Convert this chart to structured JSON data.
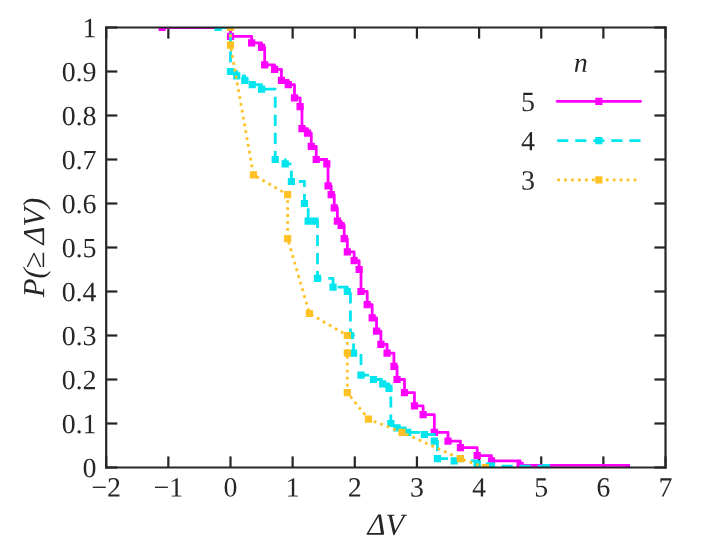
{
  "chart_data": {
    "type": "line",
    "xlabel": "ΔV",
    "ylabel": "P(≥ ΔV)",
    "legend_title": "n",
    "legend": "top right",
    "grid": false,
    "xlim": [
      -2,
      7
    ],
    "ylim": [
      0,
      1
    ],
    "xticks": [
      -2,
      -1,
      0,
      1,
      2,
      3,
      4,
      5,
      6,
      7
    ],
    "yticks": [
      0,
      0.1,
      0.2,
      0.3,
      0.4,
      0.5,
      0.6,
      0.7,
      0.8,
      0.9,
      1
    ],
    "series": [
      {
        "name": "5",
        "type": "step",
        "color": "#ff00ff",
        "line_style": "solid",
        "marker": "square",
        "x": [
          -1.1,
          0,
          0.34,
          0.5,
          0.55,
          0.71,
          0.82,
          0.93,
          1.03,
          1.12,
          1.15,
          1.24,
          1.3,
          1.38,
          1.55,
          1.57,
          1.62,
          1.67,
          1.72,
          1.78,
          1.83,
          1.88,
          1.99,
          2.07,
          2.1,
          2.2,
          2.28,
          2.35,
          2.42,
          2.52,
          2.63,
          2.68,
          2.8,
          2.96,
          3.1,
          3.28,
          3.5,
          3.7,
          3.97,
          4.2,
          4.66,
          6.37
        ],
        "values": [
          1,
          0.98,
          0.965,
          0.955,
          0.915,
          0.905,
          0.88,
          0.87,
          0.84,
          0.82,
          0.77,
          0.76,
          0.73,
          0.7,
          0.69,
          0.64,
          0.62,
          0.59,
          0.56,
          0.55,
          0.52,
          0.49,
          0.47,
          0.45,
          0.4,
          0.37,
          0.34,
          0.31,
          0.28,
          0.26,
          0.23,
          0.2,
          0.17,
          0.14,
          0.12,
          0.08,
          0.06,
          0.045,
          0.027,
          0.015,
          0.005,
          0
        ]
      },
      {
        "name": "4",
        "type": "step",
        "color": "#00e5ee",
        "line_style": "dashed",
        "marker": "square",
        "x": [
          -0.2,
          0,
          0.1,
          0.23,
          0.35,
          0.5,
          0.72,
          0.88,
          0.98,
          1.19,
          1.25,
          1.36,
          1.4,
          1.65,
          1.88,
          1.93,
          1.98,
          2.1,
          2.3,
          2.45,
          2.55,
          2.58,
          2.68,
          2.85,
          3.12,
          3.28,
          3.33,
          3.6,
          3.97,
          4.2,
          5.08
        ],
        "values": [
          1,
          0.9,
          0.89,
          0.88,
          0.87,
          0.86,
          0.7,
          0.69,
          0.65,
          0.6,
          0.56,
          0.56,
          0.43,
          0.41,
          0.4,
          0.3,
          0.26,
          0.21,
          0.2,
          0.19,
          0.18,
          0.1,
          0.09,
          0.08,
          0.075,
          0.06,
          0.02,
          0.015,
          0.008,
          0.003,
          0
        ]
      },
      {
        "name": "3",
        "color": "#ffc125",
        "line_style": "dotted",
        "marker": "square",
        "x": [
          0,
          0,
          0.37,
          0.92,
          0.92,
          1.27,
          1.88,
          1.88,
          1.88,
          2.22,
          2.76,
          3.7,
          4.1
        ],
        "values": [
          1,
          0.96,
          0.665,
          0.62,
          0.52,
          0.35,
          0.3,
          0.26,
          0.17,
          0.11,
          0.08,
          0.02,
          0
        ]
      }
    ]
  }
}
